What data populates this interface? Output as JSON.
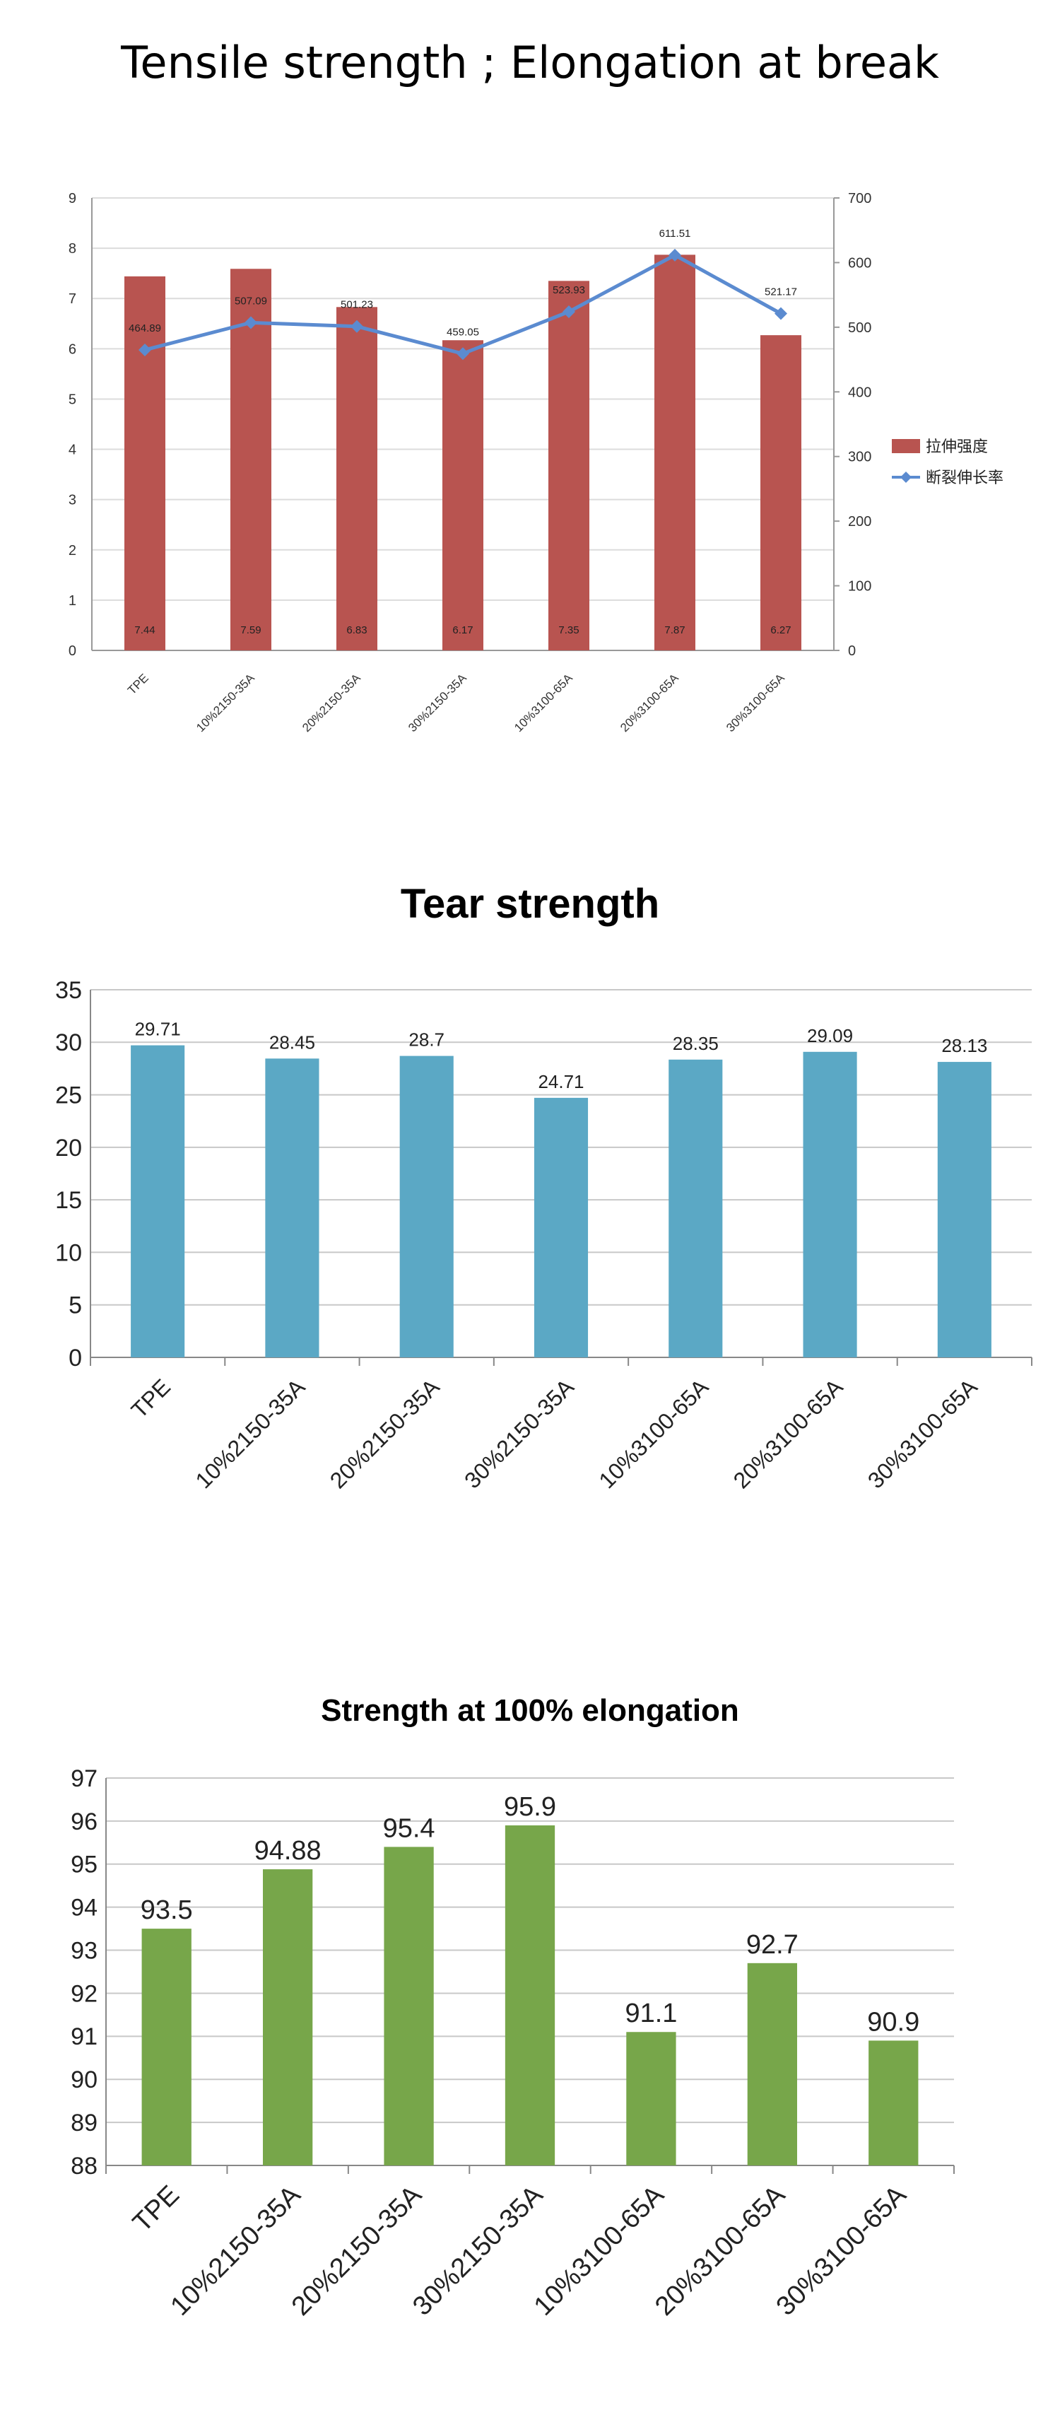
{
  "chart_data": [
    {
      "type": "bar",
      "title": "Tensile strength ; Elongation at break",
      "categories": [
        "TPE",
        "10%2150-35A",
        "20%2150-35A",
        "30%2150-35A",
        "10%3100-65A",
        "20%3100-65A",
        "30%3100-65A"
      ],
      "series": [
        {
          "name": "拉伸强度",
          "type": "bar",
          "axis": "left",
          "values": [
            7.44,
            7.59,
            6.83,
            6.17,
            7.35,
            7.87,
            6.27
          ],
          "color": "#b85450"
        },
        {
          "name": "断裂伸长率",
          "type": "line",
          "axis": "right",
          "values": [
            464.89,
            507.09,
            501.23,
            459.05,
            523.93,
            611.51,
            521.17
          ],
          "color": "#5b8bd0"
        }
      ],
      "ylim": [
        0,
        9
      ],
      "y2lim": [
        0,
        700
      ],
      "yticks": [
        0,
        1,
        2,
        3,
        4,
        5,
        6,
        7,
        8,
        9
      ],
      "y2ticks": [
        0,
        100,
        200,
        300,
        400,
        500,
        600,
        700
      ],
      "grid": true,
      "legend": "right"
    },
    {
      "type": "bar",
      "title": "Tear strength",
      "categories": [
        "TPE",
        "10%2150-35A",
        "20%2150-35A",
        "30%2150-35A",
        "10%3100-65A",
        "20%3100-65A",
        "30%3100-65A"
      ],
      "values": [
        29.71,
        28.45,
        28.7,
        24.71,
        28.35,
        29.09,
        28.13
      ],
      "color": "#5ba8c5",
      "ylim": [
        0,
        35
      ],
      "yticks": [
        0,
        5,
        10,
        15,
        20,
        25,
        30,
        35
      ],
      "grid": true
    },
    {
      "type": "bar",
      "title": "Strength at 100% elongation",
      "categories": [
        "TPE",
        "10%2150-35A",
        "20%2150-35A",
        "30%2150-35A",
        "10%3100-65A",
        "20%3100-65A",
        "30%3100-65A"
      ],
      "values": [
        93.5,
        94.88,
        95.4,
        95.9,
        91.1,
        92.7,
        90.9
      ],
      "color": "#77a64a",
      "ylim": [
        88,
        97
      ],
      "yticks": [
        88,
        89,
        90,
        91,
        92,
        93,
        94,
        95,
        96,
        97
      ],
      "grid": true
    }
  ]
}
